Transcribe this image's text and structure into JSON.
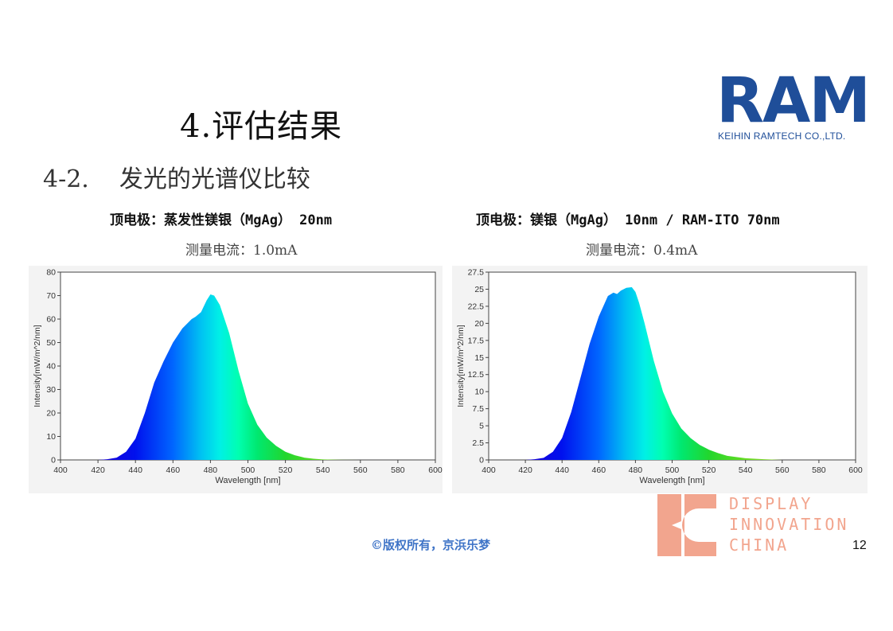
{
  "title": "4.评估结果",
  "subtitle": {
    "number": "4-2.",
    "text": "发光的光谱仪比较"
  },
  "logo": {
    "name": "RAM",
    "company": "KEIHIN RAMTECH CO.,LTD."
  },
  "left_panel": {
    "heading": "顶电极：蒸发性镁银（MgAg） 20nm",
    "current": "测量电流：1.0mA"
  },
  "right_panel": {
    "heading": "顶电极：镁银（MgAg） 10nm / RAM-ITO 70nm",
    "current": "测量电流：0.4mA"
  },
  "footer": {
    "copyright": "©版权所有，京浜乐梦",
    "page_number": "12",
    "brand_lines": [
      "DISPLAY",
      "INNOVATION",
      "CHINA"
    ]
  },
  "colors": {
    "logo_blue": "#1f4e99",
    "copyright_blue": "#3f74c7",
    "brand_salmon": "#f2a58e"
  },
  "chart_data": [
    {
      "type": "area",
      "title": "",
      "xlabel": "Wavelength [nm]",
      "ylabel": "Intensity[mW/m^2/nm]",
      "xlim": [
        400,
        600
      ],
      "ylim": [
        0,
        80
      ],
      "x_ticks": [
        400,
        420,
        440,
        460,
        480,
        500,
        520,
        540,
        560,
        580,
        600
      ],
      "y_ticks": [
        0,
        10,
        20,
        30,
        40,
        50,
        60,
        70,
        80
      ],
      "y_tick_labels": [
        "0",
        "10",
        "20",
        "30",
        "40",
        "50",
        "60",
        "70",
        "80"
      ],
      "grid": false,
      "x": [
        400,
        420,
        425,
        430,
        435,
        440,
        445,
        450,
        455,
        460,
        465,
        470,
        472,
        475,
        478,
        480,
        482,
        485,
        490,
        495,
        500,
        505,
        510,
        515,
        520,
        525,
        530,
        535,
        540,
        550,
        560,
        580,
        600
      ],
      "y": [
        0,
        0,
        0.3,
        1.0,
        3.5,
        9,
        20,
        33,
        42,
        50,
        56,
        60,
        61,
        63,
        68,
        70.5,
        70,
        66,
        54,
        38,
        24,
        15,
        9.5,
        6,
        3.5,
        2,
        1,
        0.5,
        0.2,
        0.05,
        0,
        0,
        0
      ]
    },
    {
      "type": "area",
      "title": "",
      "xlabel": "Wavelength [nm]",
      "ylabel": "Intensity[mW/m^2/nm]",
      "xlim": [
        400,
        600
      ],
      "ylim": [
        0,
        27.5
      ],
      "x_ticks": [
        400,
        420,
        440,
        460,
        480,
        500,
        520,
        540,
        560,
        580,
        600
      ],
      "y_ticks": [
        0,
        2.5,
        5,
        7.5,
        10,
        12.5,
        15,
        17.5,
        20,
        22.5,
        25,
        27.5
      ],
      "y_tick_labels": [
        "0",
        "2.5",
        "5",
        "7.5",
        "10",
        "12.5",
        "15",
        "17.5",
        "20",
        "22.5",
        "25",
        "27.5"
      ],
      "grid": false,
      "x": [
        400,
        420,
        425,
        430,
        435,
        440,
        445,
        450,
        455,
        460,
        465,
        468,
        470,
        472,
        475,
        478,
        480,
        482,
        485,
        490,
        495,
        500,
        505,
        510,
        515,
        520,
        525,
        530,
        540,
        550,
        560,
        580,
        600
      ],
      "y": [
        0,
        0,
        0.1,
        0.3,
        1.2,
        3.2,
        7,
        12,
        17,
        21,
        24,
        24.5,
        24.3,
        24.8,
        25.2,
        25.3,
        24.6,
        23,
        20,
        14.5,
        10,
        6.8,
        4.6,
        3.2,
        2.2,
        1.5,
        1.0,
        0.6,
        0.25,
        0.1,
        0,
        0,
        0
      ]
    }
  ]
}
